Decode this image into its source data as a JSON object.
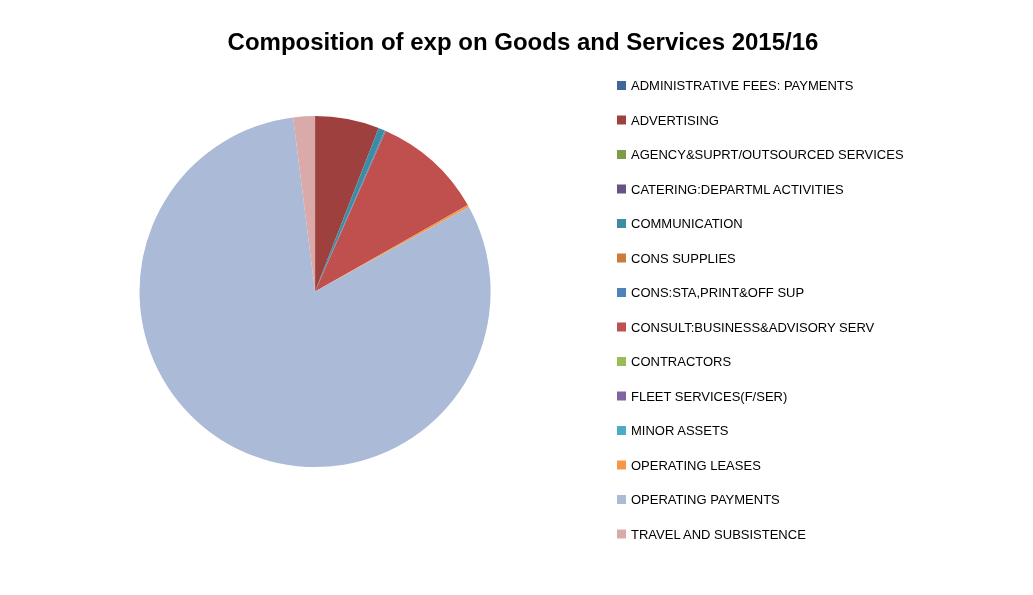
{
  "chart_data": {
    "type": "pie",
    "title": "Composition of exp on Goods and Services 2015/16",
    "categories": [
      "ADMINISTRATIVE FEES: PAYMENTS",
      "ADVERTISING",
      "AGENCY&SUPRT/OUTSOURCED SERVICES",
      "CATERING:DEPARTML ACTIVITIES",
      "COMMUNICATION",
      "CONS SUPPLIES",
      "CONS:STA,PRINT&OFF SUP",
      "CONSULT:BUSINESS&ADVISORY SERV",
      "CONTRACTORS",
      "FLEET SERVICES(F/SER)",
      "MINOR ASSETS",
      "OPERATING LEASES",
      "OPERATING PAYMENTS",
      "TRAVEL AND SUBSISTENCE"
    ],
    "values": [
      0,
      5.9,
      0,
      0,
      0.6,
      0,
      0.1,
      10.2,
      0,
      0,
      0,
      0.2,
      81.0,
      2.0
    ],
    "colors": [
      "#3F679A",
      "#9E413E",
      "#7F9A48",
      "#695185",
      "#3C8DA3",
      "#CC7B38",
      "#4F81BD",
      "#C0504D",
      "#9BBB59",
      "#8064A2",
      "#4BACC6",
      "#F79646",
      "#AABAD7",
      "#D9AAA9"
    ],
    "legend": "right"
  }
}
